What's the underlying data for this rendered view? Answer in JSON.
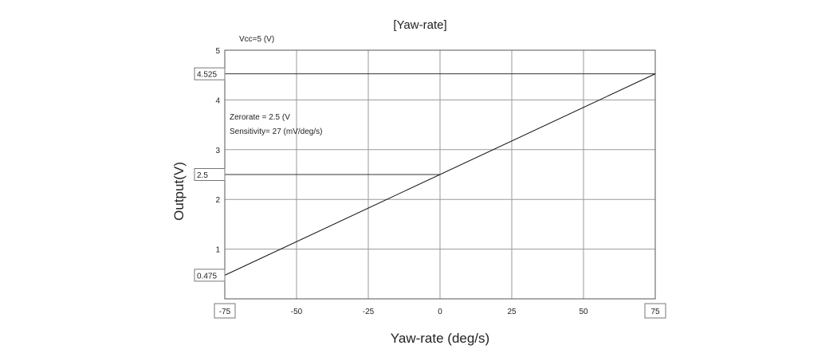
{
  "chart_data": {
    "type": "line",
    "title": "[Yaw-rate]",
    "xlabel": "Yaw-rate  (deg/s)",
    "ylabel": "Output(V)",
    "xlim": [
      -75,
      75
    ],
    "ylim": [
      0,
      5
    ],
    "xticks": [
      -75,
      -50,
      -25,
      0,
      25,
      50,
      75
    ],
    "yticks": [
      1,
      2,
      3,
      4,
      5
    ],
    "xtick_labels": [
      "-75",
      "-50",
      "-25",
      "0",
      "25",
      "50",
      "75"
    ],
    "ytick_labels": [
      "1",
      "2",
      "3",
      "4",
      "5"
    ],
    "grid": true,
    "series": [
      {
        "x": [
          -75,
          75
        ],
        "y": [
          0.475,
          4.525
        ]
      }
    ],
    "reference_lines": [
      {
        "label": "4.525",
        "y": 4.525,
        "x_from": -75,
        "x_to": 75
      },
      {
        "label": "2.5",
        "y": 2.5,
        "x_from": -75,
        "x_to": 0
      }
    ],
    "boxed_labels": {
      "y": [
        {
          "value": 4.525,
          "text": "4.525"
        },
        {
          "value": 2.5,
          "text": "2.5"
        },
        {
          "value": 0.475,
          "text": "0.475"
        }
      ],
      "x": [
        {
          "value": -75,
          "text": "-75"
        },
        {
          "value": 75,
          "text": "75"
        }
      ]
    },
    "annotations": {
      "vcc": "Vcc=5 (V)",
      "zerorate": "Zerorate = 2.5 (V",
      "sensitivity": "Sensitivity= 27 (mV/deg/s)"
    }
  }
}
